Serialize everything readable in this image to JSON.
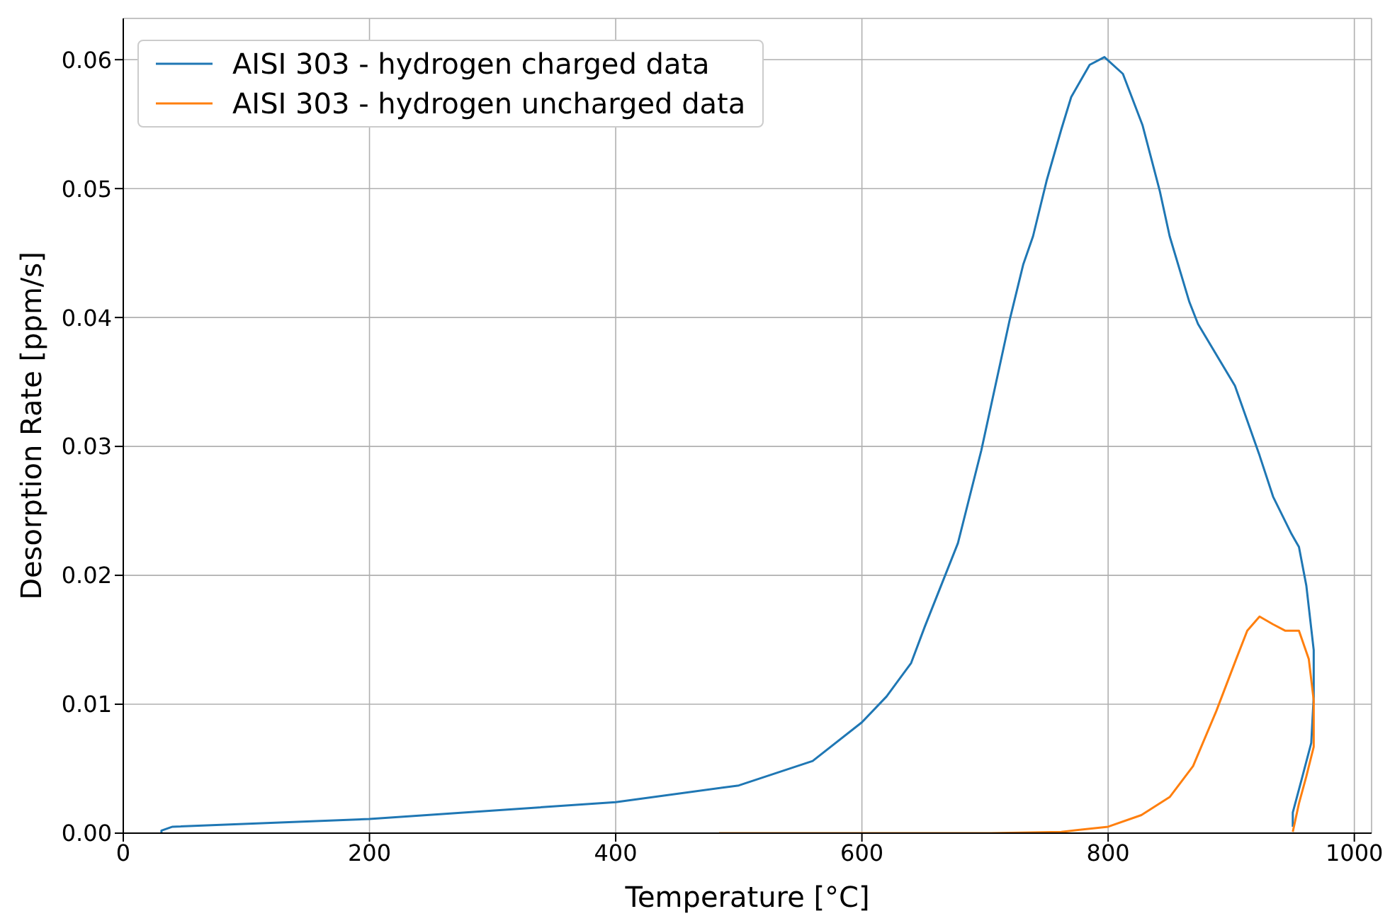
{
  "chart_data": {
    "type": "line",
    "xlabel": "Temperature [°C]",
    "ylabel": "Desorption Rate [ppm/s]",
    "xlim": [
      0,
      1014
    ],
    "ylim": [
      0,
      0.0632
    ],
    "xticks": [
      0,
      200,
      400,
      600,
      800,
      1000
    ],
    "yticks": [
      {
        "value": 0,
        "label": "0.00"
      },
      {
        "value": 0.01,
        "label": "0.01"
      },
      {
        "value": 0.02,
        "label": "0.02"
      },
      {
        "value": 0.03,
        "label": "0.03"
      },
      {
        "value": 0.04,
        "label": "0.04"
      },
      {
        "value": 0.05,
        "label": "0.05"
      },
      {
        "value": 0.06,
        "label": "0.06"
      }
    ],
    "grid": true,
    "legend": "top left",
    "marker": "none",
    "line_style": "solid",
    "series": [
      {
        "name": "AISI 303 - hydrogen charged data",
        "color": "#1f77b4",
        "x": [
          31,
          31,
          40,
          200,
          400,
          500,
          560,
          600,
          620,
          640,
          651,
          678,
          697,
          720,
          731,
          739,
          750,
          762,
          770,
          785,
          797,
          812,
          828,
          842,
          850,
          866,
          873,
          903,
          923,
          934,
          949,
          955,
          961,
          967,
          967,
          965,
          957,
          950,
          950
        ],
        "values": [
          0,
          0.0002,
          0.0005,
          0.0011,
          0.0024,
          0.0037,
          0.0056,
          0.0086,
          0.0106,
          0.0132,
          0.016,
          0.0225,
          0.0297,
          0.0398,
          0.0441,
          0.0463,
          0.0506,
          0.0546,
          0.0571,
          0.0596,
          0.0602,
          0.0589,
          0.0549,
          0.0498,
          0.0463,
          0.0412,
          0.0395,
          0.0347,
          0.0293,
          0.0261,
          0.0232,
          0.0222,
          0.0192,
          0.0142,
          0.0106,
          0.007,
          0.0041,
          0.0016,
          0.0005
        ]
      },
      {
        "name": "AISI 303 - hydrogen uncharged data",
        "color": "#ff7f0e",
        "x": [
          484,
          705,
          762,
          800,
          827,
          850,
          869,
          888,
          904,
          913,
          923,
          934,
          944,
          955,
          963,
          967,
          967,
          961,
          955,
          950
        ],
        "values": [
          0,
          0,
          0.0001,
          0.0005,
          0.0014,
          0.0028,
          0.0052,
          0.0095,
          0.0135,
          0.0157,
          0.0168,
          0.0162,
          0.0157,
          0.0157,
          0.0135,
          0.0103,
          0.0067,
          0.0044,
          0.0023,
          0.0001
        ]
      }
    ]
  }
}
